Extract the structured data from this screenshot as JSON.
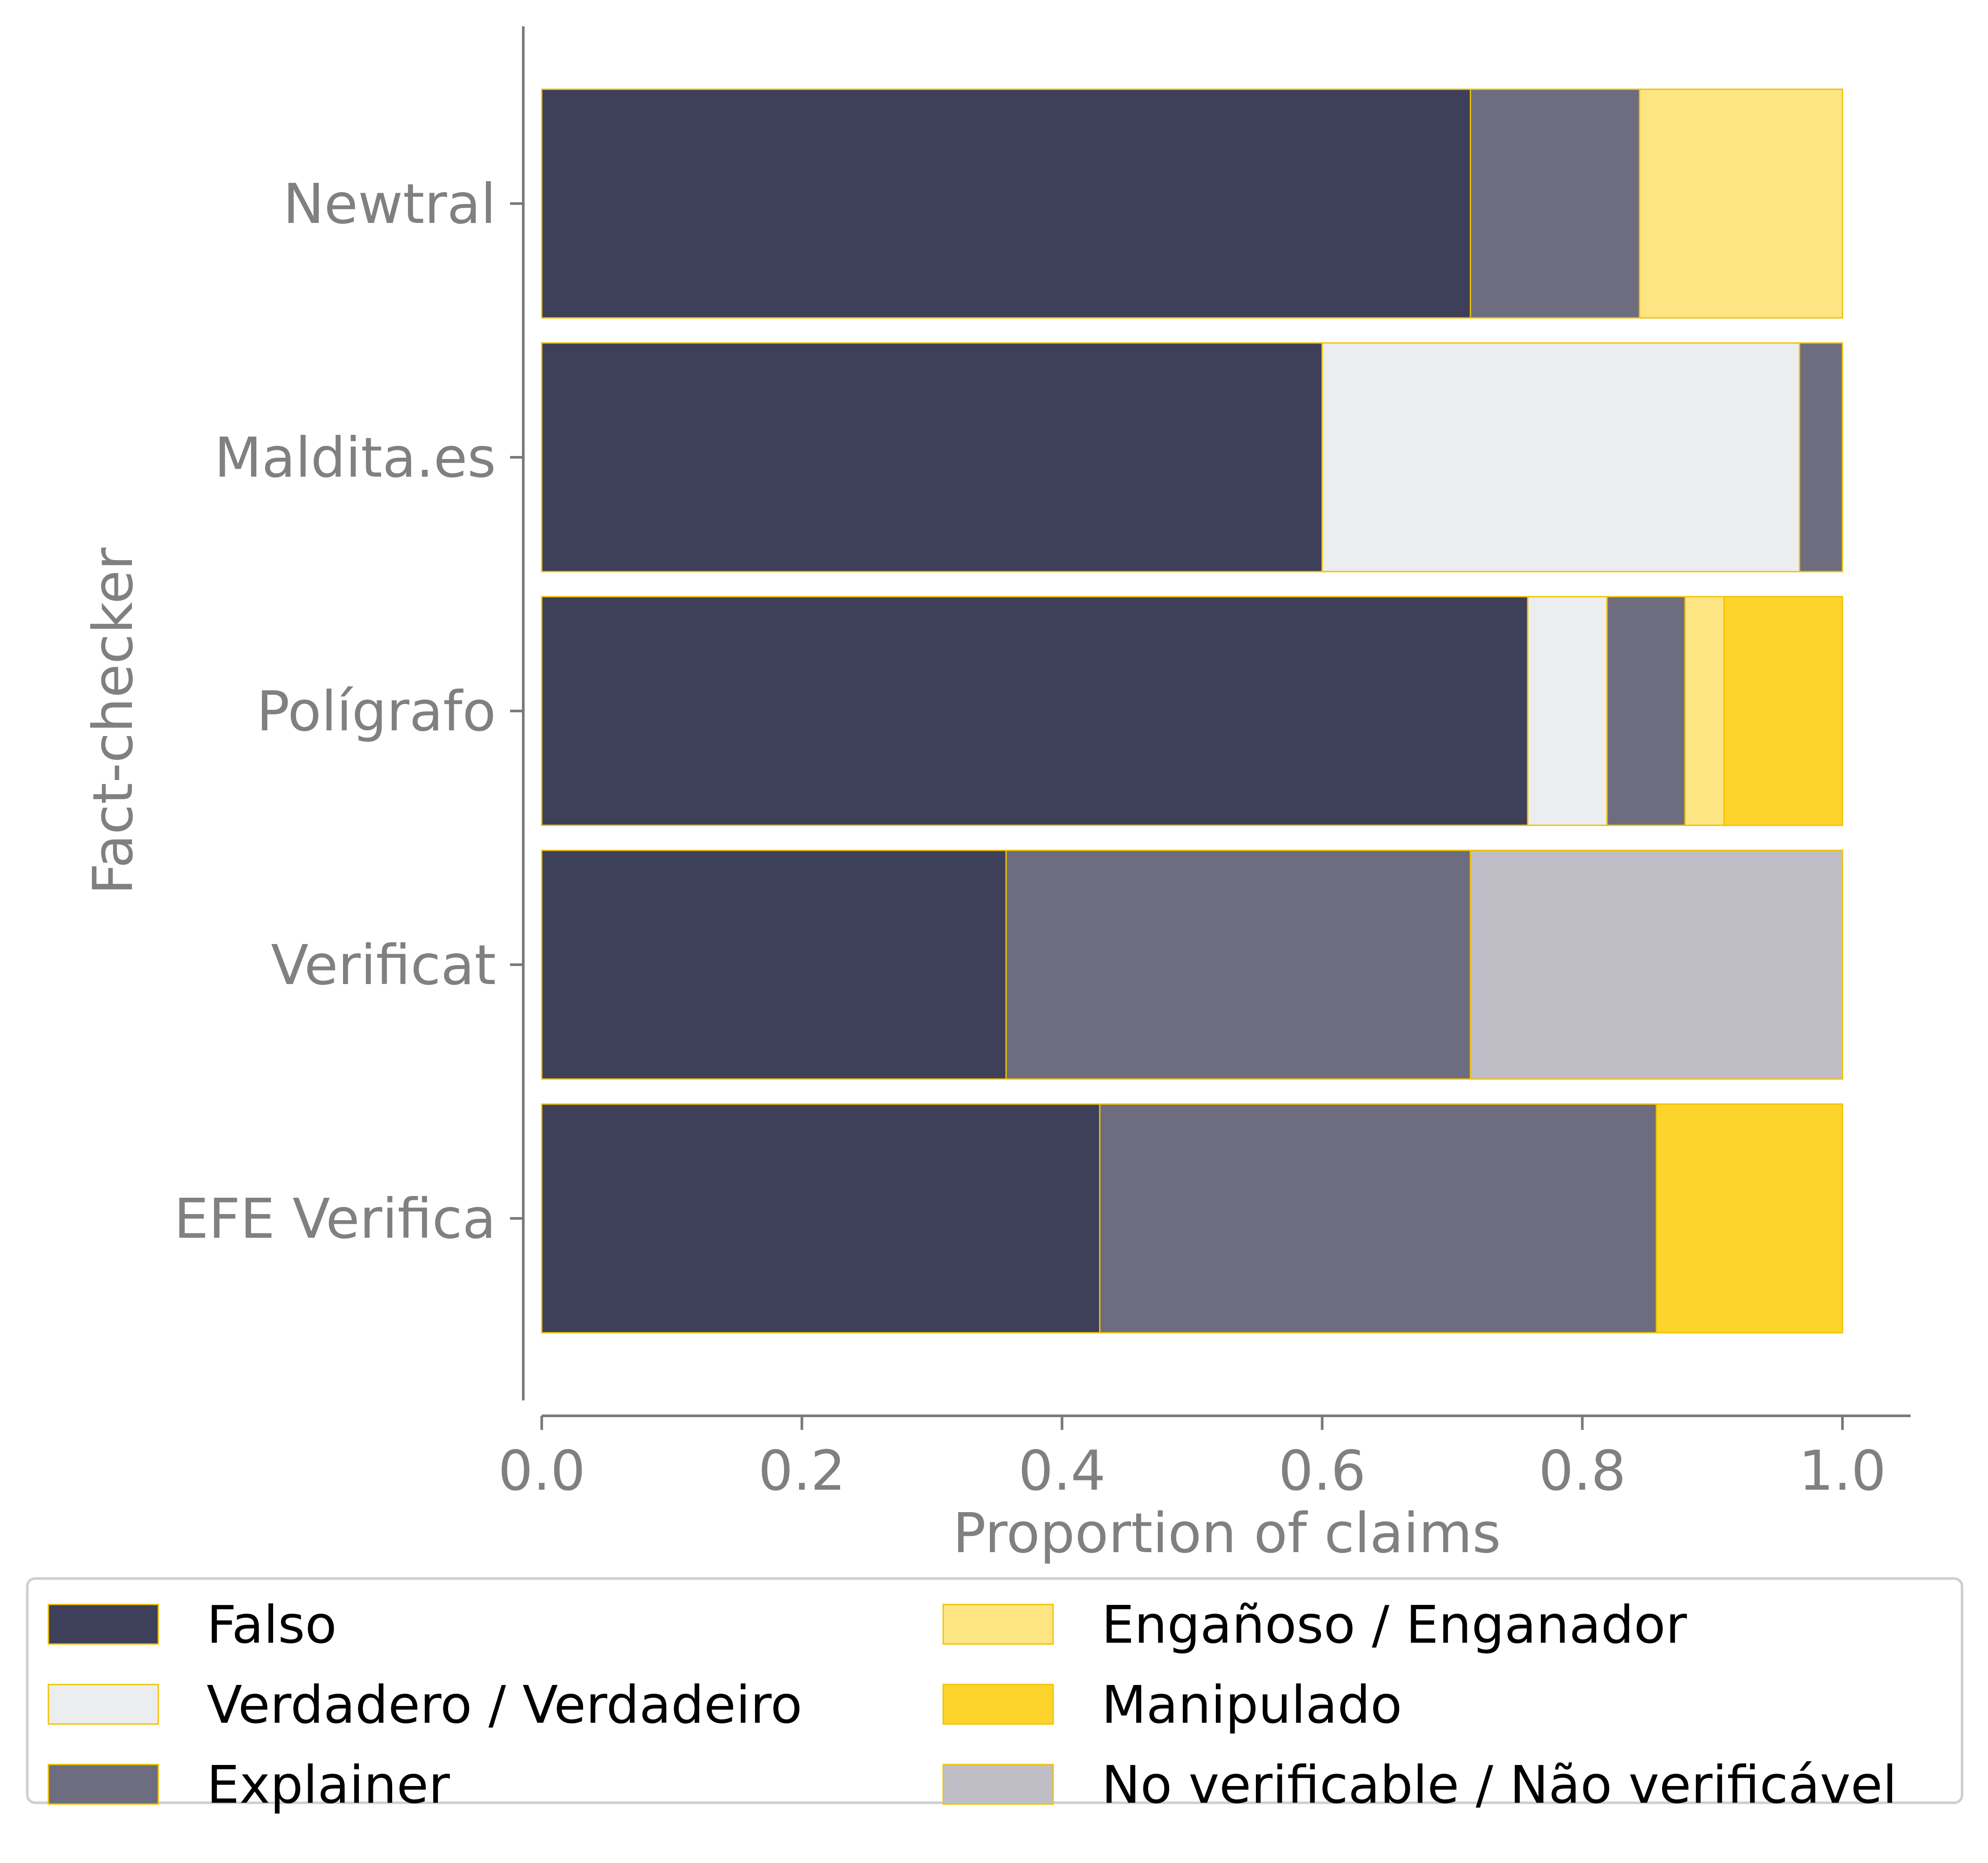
{
  "chart_data": {
    "type": "bar",
    "orientation": "horizontal",
    "stacked": true,
    "title": "",
    "xlabel": "Proportion of claims",
    "ylabel": "Fact-checker",
    "xlim": [
      0,
      1.05
    ],
    "xticks": [
      0.0,
      0.2,
      0.4,
      0.6,
      0.8,
      1.0
    ],
    "xtick_labels": [
      "0.0",
      "0.2",
      "0.4",
      "0.6",
      "0.8",
      "1.0"
    ],
    "grid": false,
    "legend_position": "bottom",
    "categories": [
      "Newtral",
      "Maldita.es",
      "Polígrafo",
      "Verificat",
      "EFE Verifica"
    ],
    "series": [
      {
        "name": "Falso",
        "color": "#3e3f59",
        "values": [
          0.714,
          0.6,
          0.758,
          0.357,
          0.429
        ]
      },
      {
        "name": "Verdadero / Verdadeiro",
        "color": "#ecedee",
        "values": [
          0.0,
          0.367,
          0.061,
          0.0,
          0.0
        ]
      },
      {
        "name": "Explainer",
        "color": "#6d6d7f",
        "values": [
          0.13,
          0.033,
          0.06,
          0.357,
          0.428
        ]
      },
      {
        "name": "Engañoso / Enganador",
        "color": "#fde584",
        "values": [
          0.156,
          0.0,
          0.03,
          0.0,
          0.0
        ]
      },
      {
        "name": "Manipulado",
        "color": "#fdd42b",
        "values": [
          0.0,
          0.0,
          0.091,
          0.0,
          0.143
        ]
      },
      {
        "name": "No verificable / Não verificável",
        "color": "#bfbec7",
        "values": [
          0.0,
          0.0,
          0.0,
          0.286,
          0.0
        ]
      }
    ],
    "bar_edge_color": "#f2c200",
    "axis_color": "#7a7a7a",
    "label_color": "#808080"
  }
}
